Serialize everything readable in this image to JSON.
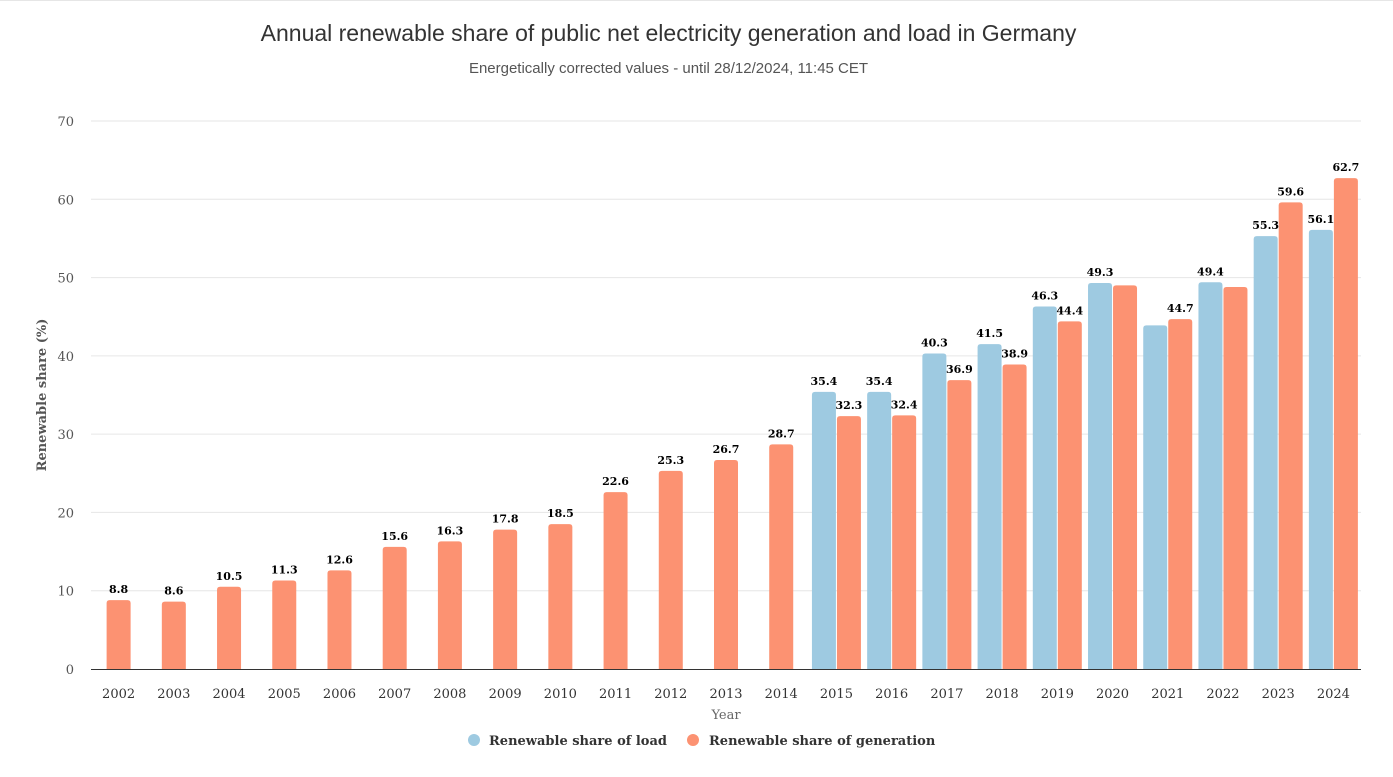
{
  "chart_data": {
    "type": "bar",
    "title": "Annual renewable share of public net electricity generation and load in Germany",
    "subtitle": "Energetically corrected values - until 28/12/2024, 11:45 CET",
    "xlabel": "Year",
    "ylabel": "Renewable share (%)",
    "ylim": [
      0,
      70
    ],
    "yticks": [
      0,
      10,
      20,
      30,
      40,
      50,
      60,
      70
    ],
    "grid": true,
    "legend_position": "bottom-center",
    "categories": [
      "2002",
      "2003",
      "2004",
      "2005",
      "2006",
      "2007",
      "2008",
      "2009",
      "2010",
      "2011",
      "2012",
      "2013",
      "2014",
      "2015",
      "2016",
      "2017",
      "2018",
      "2019",
      "2020",
      "2021",
      "2022",
      "2023",
      "2024"
    ],
    "series": [
      {
        "name": "Renewable share of load",
        "color": "#9ecae1",
        "values": [
          null,
          null,
          null,
          null,
          null,
          null,
          null,
          null,
          null,
          null,
          null,
          null,
          null,
          35.4,
          35.4,
          40.3,
          41.5,
          46.3,
          49.3,
          43.9,
          49.4,
          55.3,
          56.1
        ],
        "labels": [
          null,
          null,
          null,
          null,
          null,
          null,
          null,
          null,
          null,
          null,
          null,
          null,
          null,
          "35.4",
          "35.4",
          "40.3",
          "41.5",
          "46.3",
          "49.3",
          null,
          "49.4",
          "55.3",
          "56.1"
        ]
      },
      {
        "name": "Renewable share of generation",
        "color": "#fc9272",
        "values": [
          8.8,
          8.6,
          10.5,
          11.3,
          12.6,
          15.6,
          16.3,
          17.8,
          18.5,
          22.6,
          25.3,
          26.7,
          28.7,
          32.3,
          32.4,
          36.9,
          38.9,
          44.4,
          49.0,
          44.7,
          48.8,
          59.6,
          62.7
        ],
        "labels": [
          "8.8",
          "8.6",
          "10.5",
          "11.3",
          "12.6",
          "15.6",
          "16.3",
          "17.8",
          "18.5",
          "22.6",
          "25.3",
          "26.7",
          "28.7",
          "32.3",
          "32.4",
          "36.9",
          "38.9",
          "44.4",
          null,
          "44.7",
          null,
          "59.6",
          "62.7"
        ]
      }
    ]
  }
}
